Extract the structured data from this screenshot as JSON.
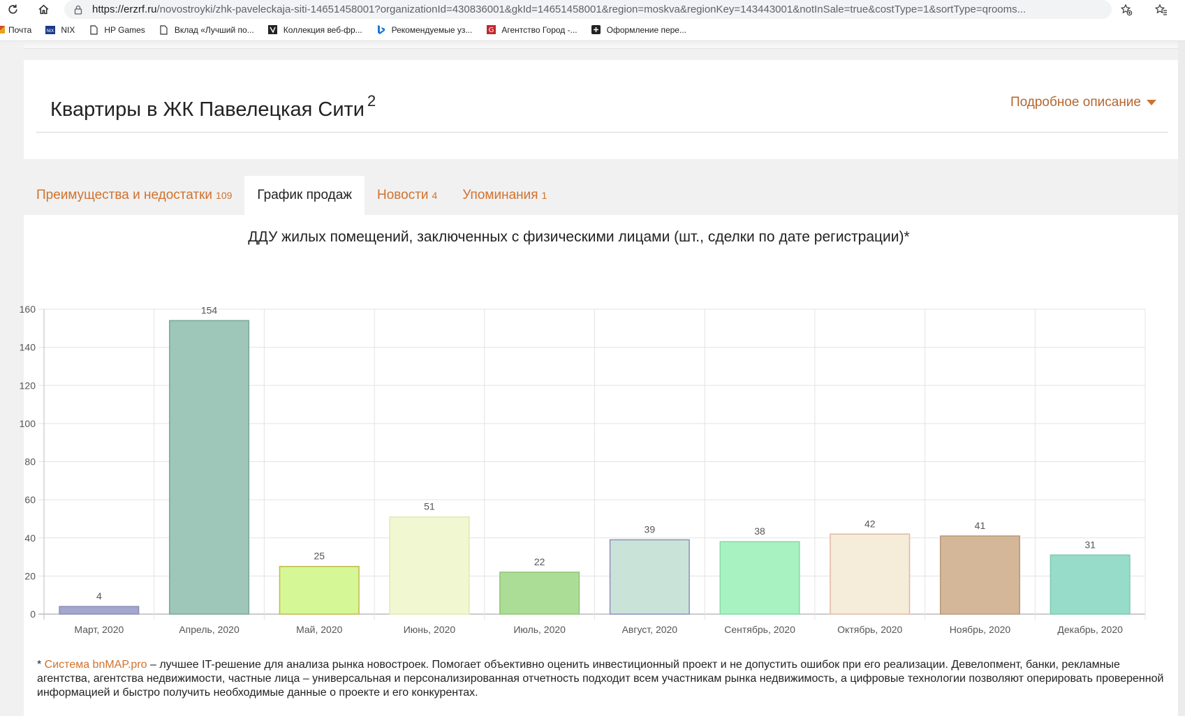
{
  "browser": {
    "url_host": "https://erzrf.ru",
    "url_path": "/novostroyki/zhk-paveleckaja-siti-14651458001?organizationId=430836001&gkId=14651458001&region=moskva&regionKey=143443001&notInSale=true&costType=1&sortType=qrooms...",
    "icons": [
      "reload-icon",
      "home-icon",
      "lock-icon",
      "add-to-favorites-icon",
      "favorites-icon"
    ]
  },
  "bookmarks": [
    {
      "label": "Почта",
      "icon": "mail-icon",
      "color": "#e8a317"
    },
    {
      "label": "NIX",
      "icon": "nix-icon",
      "color": "#1a3a8a"
    },
    {
      "label": "HP Games",
      "icon": "page-icon",
      "color": "#555555"
    },
    {
      "label": "Вклад «Лучший по...",
      "icon": "page-icon",
      "color": "#555555"
    },
    {
      "label": "Коллекция веб-фр...",
      "icon": "collection-icon",
      "color": "#222222"
    },
    {
      "label": "Рекомендуемые уз...",
      "icon": "bing-icon",
      "color": "#1b78d4"
    },
    {
      "label": "Агентство Город -...",
      "icon": "gorod-icon",
      "color": "#c0282d"
    },
    {
      "label": "Оформление пере...",
      "icon": "plus-icon",
      "color": "#222222"
    }
  ],
  "header": {
    "title": "Квартиры в ЖК Павелецкая Сити",
    "title_count": "2",
    "detail_link": "Подробное описание"
  },
  "tabs": [
    {
      "label": "Преимущества и недостатки",
      "count": "109",
      "active": false
    },
    {
      "label": "График продаж",
      "count": "",
      "active": true
    },
    {
      "label": "Новости",
      "count": "4",
      "active": false
    },
    {
      "label": "Упоминания",
      "count": "1",
      "active": false
    }
  ],
  "chart_data": {
    "type": "bar",
    "title": "ДДУ жилых помещений, заключенных с физическими лицами (шт., сделки по дате регистрации)*",
    "categories": [
      "Март, 2020",
      "Апрель, 2020",
      "Май, 2020",
      "Июнь, 2020",
      "Июль, 2020",
      "Август, 2020",
      "Сентябрь, 2020",
      "Октябрь, 2020",
      "Ноябрь, 2020",
      "Декабрь, 2020"
    ],
    "values": [
      4,
      154,
      25,
      51,
      22,
      39,
      38,
      42,
      41,
      31
    ],
    "data_labels": [
      "4",
      "154",
      "25",
      "51",
      "22",
      "39",
      "38",
      "42",
      "41",
      "31"
    ],
    "bar_fill": [
      "#a3a6cd",
      "#9ec6b9",
      "#d6f795",
      "#f1f8d1",
      "#acdd96",
      "#cae3d8",
      "#a8f2c2",
      "#f5ecda",
      "#d3b798",
      "#96dcc8"
    ],
    "bar_stroke": [
      "#8b8fb8",
      "#7aa896",
      "#c2b84e",
      "#dfe8b5",
      "#8fc578",
      "#8d8fbd",
      "#86d8a4",
      "#e0b8a0",
      "#b9997a",
      "#7bc9b4"
    ],
    "yticks": [
      "0",
      "20",
      "40",
      "60",
      "80",
      "100",
      "120",
      "140",
      "160"
    ],
    "ylim": [
      0,
      160
    ],
    "grid": true,
    "xlabel": "",
    "ylabel": ""
  },
  "footnote": {
    "prefix": "* ",
    "link": "Система bnMAP.pro",
    "text": " – лучшее IT-решение для анализа рынка новостроек. Помогает объективно оценить инвестиционный проект и не допустить ошибок при его реализации. Девелопмент, банки, рекламные агентства, агентства недвижимости, частные лица – универсальная и персонализированная отчетность подходит всем участникам рынка недвижимость, а цифровые технологии позволяют оперировать проверенной информацией и быстро получить необходимые данные о проекте и его конкурентах."
  }
}
